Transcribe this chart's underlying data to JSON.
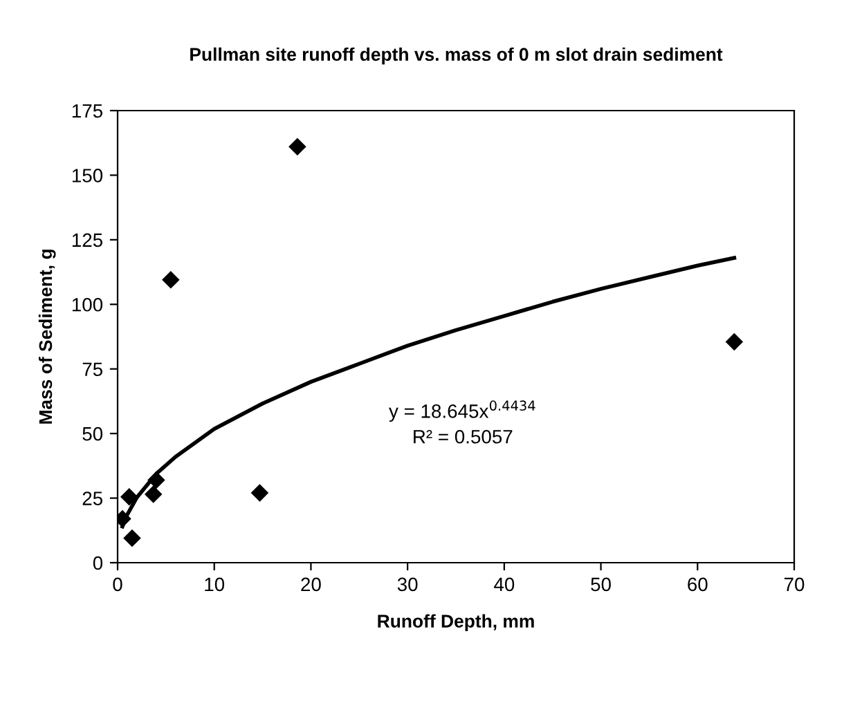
{
  "chart_data": {
    "type": "scatter",
    "title": "Pullman site runoff depth vs. mass of 0 m slot drain sediment",
    "xlabel": "Runoff Depth, mm",
    "ylabel": "Mass of Sediment, g",
    "xlim": [
      0,
      70
    ],
    "xticks": [
      0,
      10,
      20,
      30,
      40,
      50,
      60,
      70
    ],
    "ylim": [
      0,
      175
    ],
    "yticks": [
      0,
      25,
      50,
      75,
      100,
      125,
      150,
      175
    ],
    "grid": false,
    "legend": false,
    "marker": "diamond",
    "series": [
      {
        "color": "#000000",
        "x": [
          0.5,
          1.2,
          1.5,
          3.7,
          4.0,
          5.5,
          14.7,
          18.6,
          63.8
        ],
        "values": [
          17,
          25.5,
          9.5,
          26.5,
          32,
          109.5,
          27,
          161,
          85.5
        ]
      },
      {
        "type": "line",
        "color": "#000000",
        "marker": "none",
        "line_style": "solid",
        "x": [
          0.5,
          1,
          2,
          4,
          6,
          10,
          15,
          20,
          25,
          30,
          35,
          40,
          45,
          50,
          55,
          60,
          63.8
        ],
        "values": [
          14,
          18.6,
          25.3,
          34.4,
          41,
          51.8,
          61.6,
          70,
          77,
          84,
          90,
          95.5,
          101,
          106,
          110.5,
          115,
          118
        ]
      }
    ],
    "annotations": [
      "y = 18.645x$^{0.4434}$",
      "R² = 0.5057"
    ]
  }
}
